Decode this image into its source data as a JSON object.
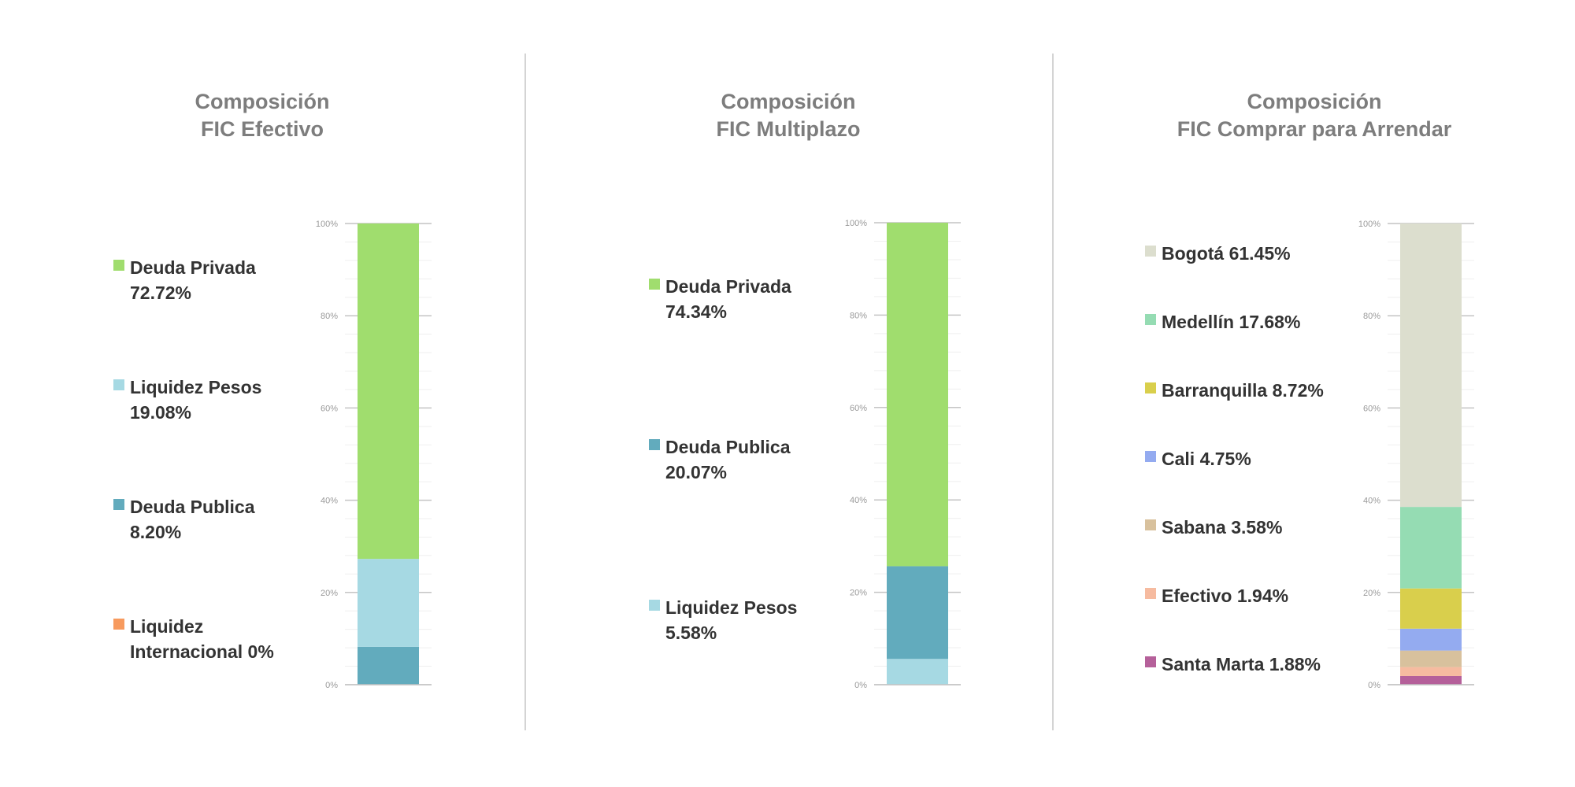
{
  "charts": [
    {
      "title_line1": "Composición",
      "title_line2": "FIC Efectivo",
      "legend": [
        {
          "line1": "Deuda Privada",
          "line2": "72.72%",
          "color": "#a0dd6e"
        },
        {
          "line1": "Liquidez Pesos",
          "line2": "19.08%",
          "color": "#a6d9e3"
        },
        {
          "line1": "Deuda Publica",
          "line2": "8.20%",
          "color": "#62abbd"
        },
        {
          "line1": "Liquidez",
          "line2": "Internacional 0%",
          "color": "#f79a5e"
        }
      ]
    },
    {
      "title_line1": "Composición",
      "title_line2": "FIC Multiplazo",
      "legend": [
        {
          "line1": "Deuda Privada",
          "line2": "74.34%",
          "color": "#a0dd6e"
        },
        {
          "line1": "Deuda Publica",
          "line2": "20.07%",
          "color": "#62abbd"
        },
        {
          "line1": "Liquidez Pesos",
          "line2": "5.58%",
          "color": "#a6d9e3"
        }
      ]
    },
    {
      "title_line1": "Composición",
      "title_line2": "FIC Comprar para Arrendar",
      "legend": [
        {
          "line1": "Bogotá 61.45%",
          "color": "#dcdece"
        },
        {
          "line1": "Medellín 17.68%",
          "color": "#95dcb3"
        },
        {
          "line1": "Barranquilla 8.72%",
          "color": "#d9cf4c"
        },
        {
          "line1": "Cali 4.75%",
          "color": "#94abf0"
        },
        {
          "line1": "Sabana 3.58%",
          "color": "#d8c19d"
        },
        {
          "line1": "Efectivo 1.94%",
          "color": "#f6bba0"
        },
        {
          "line1": "Santa Marta 1.88%",
          "color": "#b5609a"
        }
      ]
    }
  ],
  "chart_data": [
    {
      "type": "bar",
      "stacked": true,
      "title": "Composición FIC Efectivo",
      "ylim": [
        0,
        100
      ],
      "yticks": [
        "0%",
        "20%",
        "40%",
        "60%",
        "80%",
        "100%"
      ],
      "grid": true,
      "legend_position": "left",
      "series": [
        {
          "name": "Liquidez Internacional",
          "value": 0,
          "color": "#f79a5e"
        },
        {
          "name": "Deuda Publica",
          "value": 8.2,
          "color": "#62abbd"
        },
        {
          "name": "Liquidez Pesos",
          "value": 19.08,
          "color": "#a6d9e3"
        },
        {
          "name": "Deuda Privada",
          "value": 72.72,
          "color": "#a0dd6e"
        }
      ]
    },
    {
      "type": "bar",
      "stacked": true,
      "title": "Composición FIC Multiplazo",
      "ylim": [
        0,
        100
      ],
      "yticks": [
        "0%",
        "20%",
        "40%",
        "60%",
        "80%",
        "100%"
      ],
      "grid": true,
      "legend_position": "left",
      "series": [
        {
          "name": "Liquidez Pesos",
          "value": 5.58,
          "color": "#a6d9e3"
        },
        {
          "name": "Deuda Publica",
          "value": 20.07,
          "color": "#62abbd"
        },
        {
          "name": "Deuda Privada",
          "value": 74.34,
          "color": "#a0dd6e"
        }
      ]
    },
    {
      "type": "bar",
      "stacked": true,
      "title": "Composición FIC Comprar para Arrendar",
      "ylim": [
        0,
        100
      ],
      "yticks": [
        "0%",
        "20%",
        "40%",
        "60%",
        "80%",
        "100%"
      ],
      "grid": true,
      "legend_position": "left",
      "series": [
        {
          "name": "Santa Marta",
          "value": 1.88,
          "color": "#b5609a"
        },
        {
          "name": "Efectivo",
          "value": 1.94,
          "color": "#f6bba0"
        },
        {
          "name": "Sabana",
          "value": 3.58,
          "color": "#d8c19d"
        },
        {
          "name": "Cali",
          "value": 4.75,
          "color": "#94abf0"
        },
        {
          "name": "Barranquilla",
          "value": 8.72,
          "color": "#d9cf4c"
        },
        {
          "name": "Medellín",
          "value": 17.68,
          "color": "#95dcb3"
        },
        {
          "name": "Bogotá",
          "value": 61.45,
          "color": "#dcdece"
        }
      ]
    }
  ]
}
